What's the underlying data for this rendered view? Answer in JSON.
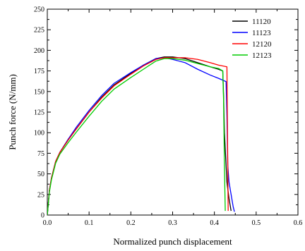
{
  "chart_data": {
    "type": "line",
    "title": "",
    "xlabel": "Normalized punch displacement",
    "ylabel": "Punch force (N/mm)",
    "xlim": [
      0.0,
      0.6
    ],
    "ylim": [
      0,
      250
    ],
    "xticks": [
      "0.0",
      "0.1",
      "0.2",
      "0.3",
      "0.4",
      "0.5",
      "0.6"
    ],
    "yticks": [
      "0",
      "25",
      "50",
      "75",
      "100",
      "125",
      "150",
      "175",
      "200",
      "225",
      "250"
    ],
    "grid": false,
    "legend_position": "top-right",
    "series": [
      {
        "name": "11120",
        "color": "#000000",
        "points": [
          [
            0.0,
            0
          ],
          [
            0.005,
            30
          ],
          [
            0.01,
            45
          ],
          [
            0.02,
            65
          ],
          [
            0.03,
            76
          ],
          [
            0.05,
            92
          ],
          [
            0.07,
            105
          ],
          [
            0.1,
            125
          ],
          [
            0.13,
            143
          ],
          [
            0.16,
            158
          ],
          [
            0.2,
            172
          ],
          [
            0.23,
            182
          ],
          [
            0.26,
            190
          ],
          [
            0.28,
            192
          ],
          [
            0.3,
            192
          ],
          [
            0.33,
            190
          ],
          [
            0.36,
            185
          ],
          [
            0.39,
            180
          ],
          [
            0.41,
            177
          ],
          [
            0.42,
            175
          ],
          [
            0.422,
            145
          ],
          [
            0.424,
            100
          ],
          [
            0.427,
            70
          ],
          [
            0.43,
            40
          ],
          [
            0.435,
            20
          ],
          [
            0.44,
            5
          ]
        ]
      },
      {
        "name": "11123",
        "color": "#0000ff",
        "points": [
          [
            0.0,
            0
          ],
          [
            0.005,
            30
          ],
          [
            0.01,
            45
          ],
          [
            0.02,
            65
          ],
          [
            0.03,
            76
          ],
          [
            0.05,
            92
          ],
          [
            0.07,
            107
          ],
          [
            0.1,
            127
          ],
          [
            0.13,
            145
          ],
          [
            0.16,
            160
          ],
          [
            0.2,
            173
          ],
          [
            0.23,
            182
          ],
          [
            0.26,
            190
          ],
          [
            0.28,
            191
          ],
          [
            0.3,
            189
          ],
          [
            0.33,
            185
          ],
          [
            0.36,
            177
          ],
          [
            0.39,
            170
          ],
          [
            0.41,
            166
          ],
          [
            0.428,
            162
          ],
          [
            0.43,
            120
          ],
          [
            0.432,
            60
          ],
          [
            0.435,
            40
          ],
          [
            0.44,
            25
          ],
          [
            0.445,
            10
          ],
          [
            0.448,
            4
          ]
        ]
      },
      {
        "name": "12120",
        "color": "#ff0000",
        "points": [
          [
            0.0,
            0
          ],
          [
            0.005,
            30
          ],
          [
            0.01,
            45
          ],
          [
            0.02,
            65
          ],
          [
            0.03,
            76
          ],
          [
            0.05,
            91
          ],
          [
            0.07,
            105
          ],
          [
            0.1,
            125
          ],
          [
            0.13,
            142
          ],
          [
            0.16,
            157
          ],
          [
            0.2,
            171
          ],
          [
            0.23,
            181
          ],
          [
            0.26,
            189
          ],
          [
            0.28,
            191
          ],
          [
            0.3,
            191
          ],
          [
            0.33,
            191
          ],
          [
            0.36,
            189
          ],
          [
            0.39,
            185
          ],
          [
            0.41,
            182
          ],
          [
            0.43,
            180
          ],
          [
            0.431,
            120
          ],
          [
            0.432,
            60
          ],
          [
            0.433,
            5
          ]
        ]
      },
      {
        "name": "12123",
        "color": "#00cc00",
        "points": [
          [
            0.0,
            0
          ],
          [
            0.005,
            28
          ],
          [
            0.01,
            43
          ],
          [
            0.02,
            63
          ],
          [
            0.03,
            74
          ],
          [
            0.05,
            88
          ],
          [
            0.07,
            101
          ],
          [
            0.1,
            120
          ],
          [
            0.13,
            138
          ],
          [
            0.16,
            153
          ],
          [
            0.2,
            167
          ],
          [
            0.23,
            177
          ],
          [
            0.26,
            187
          ],
          [
            0.28,
            190
          ],
          [
            0.3,
            190
          ],
          [
            0.33,
            188
          ],
          [
            0.36,
            184
          ],
          [
            0.39,
            180
          ],
          [
            0.41,
            178
          ],
          [
            0.42,
            175
          ],
          [
            0.422,
            140
          ],
          [
            0.424,
            60
          ],
          [
            0.426,
            5
          ]
        ]
      }
    ]
  }
}
